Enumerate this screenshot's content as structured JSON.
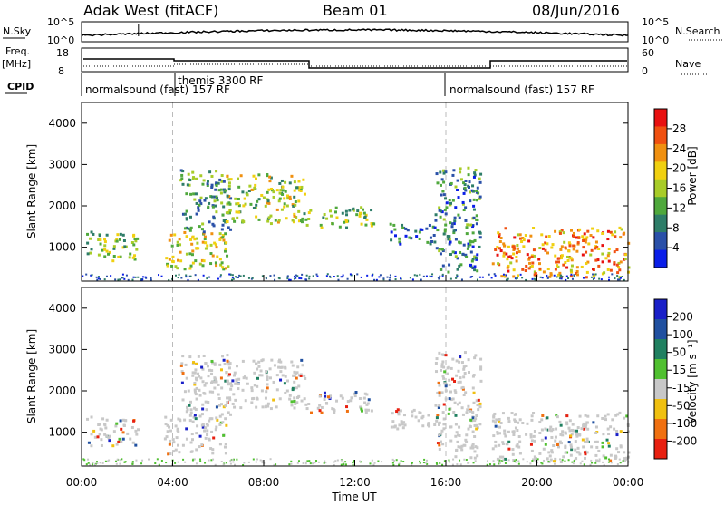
{
  "header": {
    "station": "Adak West (fitACF)",
    "beam": "Beam 01",
    "date": "08/Jun/2016"
  },
  "status_panels": {
    "nsky_label": "N.Sky",
    "nsearch_label": "N.Search",
    "nsky_ticks": [
      "10^5",
      "10^0"
    ],
    "nsearch_ticks": [
      "10^5",
      "10^0"
    ],
    "freq_label": "Freq.",
    "freq_unit": "[MHz]",
    "freq_ticks": [
      "18",
      "8"
    ],
    "nave_label": "Nave",
    "nave_ticks": [
      "60",
      "0"
    ],
    "cpid_label": "CPID",
    "cpid_segments": [
      {
        "label": "normalsound (fast) 157 RF",
        "start_hour": 0,
        "end_hour": 4.1
      },
      {
        "label": "themis 3300 RF",
        "start_hour": 4.1,
        "end_hour": 16
      },
      {
        "label": "normalsound (fast) 157 RF",
        "start_hour": 16,
        "end_hour": 24
      }
    ]
  },
  "chart_data": [
    {
      "type": "heatmap",
      "panel": "power",
      "ylabel": "Slant Range [km]",
      "xlim_hours": [
        0,
        24
      ],
      "ylim": [
        180,
        4500
      ],
      "y_ticks": [
        1000,
        2000,
        3000,
        4000
      ],
      "colorbar_label": "Power [dB]",
      "colorbar_ticks": [
        4,
        8,
        12,
        16,
        20,
        24,
        28
      ],
      "colorbar_range": [
        0,
        32
      ],
      "colors": [
        "#0a1ee8",
        "#2a50a8",
        "#2e7d68",
        "#4fa83c",
        "#a8cc28",
        "#f0d010",
        "#f09010",
        "#f05010",
        "#e81010"
      ],
      "echo_regions": [
        {
          "t0": 0.2,
          "t1": 2.5,
          "r0": 700,
          "r1": 1400,
          "val": 14
        },
        {
          "t0": 3.6,
          "t1": 6.4,
          "r0": 500,
          "r1": 1400,
          "val": 18
        },
        {
          "t0": 4.3,
          "t1": 6.5,
          "r0": 1400,
          "r1": 2900,
          "val": 10
        },
        {
          "t0": 6.3,
          "t1": 9.8,
          "r0": 1600,
          "r1": 2800,
          "val": 16
        },
        {
          "t0": 9.8,
          "t1": 12.8,
          "r0": 1500,
          "r1": 2000,
          "val": 14
        },
        {
          "t0": 13.5,
          "t1": 15.5,
          "r0": 1100,
          "r1": 1600,
          "val": 6
        },
        {
          "t0": 15.5,
          "t1": 17.5,
          "r0": 400,
          "r1": 3000,
          "val": 8
        },
        {
          "t0": 18,
          "t1": 24,
          "r0": 300,
          "r1": 1500,
          "val": 24
        }
      ],
      "dashed_hours": [
        4,
        16
      ]
    },
    {
      "type": "heatmap",
      "panel": "velocity",
      "ylabel": "Slant Range [km]",
      "xlabel": "Time UT",
      "xlim_hours": [
        0,
        24
      ],
      "ylim": [
        180,
        4500
      ],
      "y_ticks": [
        1000,
        2000,
        3000,
        4000
      ],
      "x_ticks": [
        "00:00",
        "04:00",
        "08:00",
        "12:00",
        "16:00",
        "20:00",
        "00:00"
      ],
      "colorbar_label": "Velocity [m s⁻¹]",
      "colorbar_ticks": [
        200,
        100,
        50,
        15,
        -15,
        -50,
        -100,
        -200
      ],
      "colors": [
        "#1a20c8",
        "#2050a0",
        "#208060",
        "#50c030",
        "#c8c8c8",
        "#f0c010",
        "#f07010",
        "#e82010"
      ],
      "dashed_hours": [
        4,
        16
      ]
    }
  ]
}
